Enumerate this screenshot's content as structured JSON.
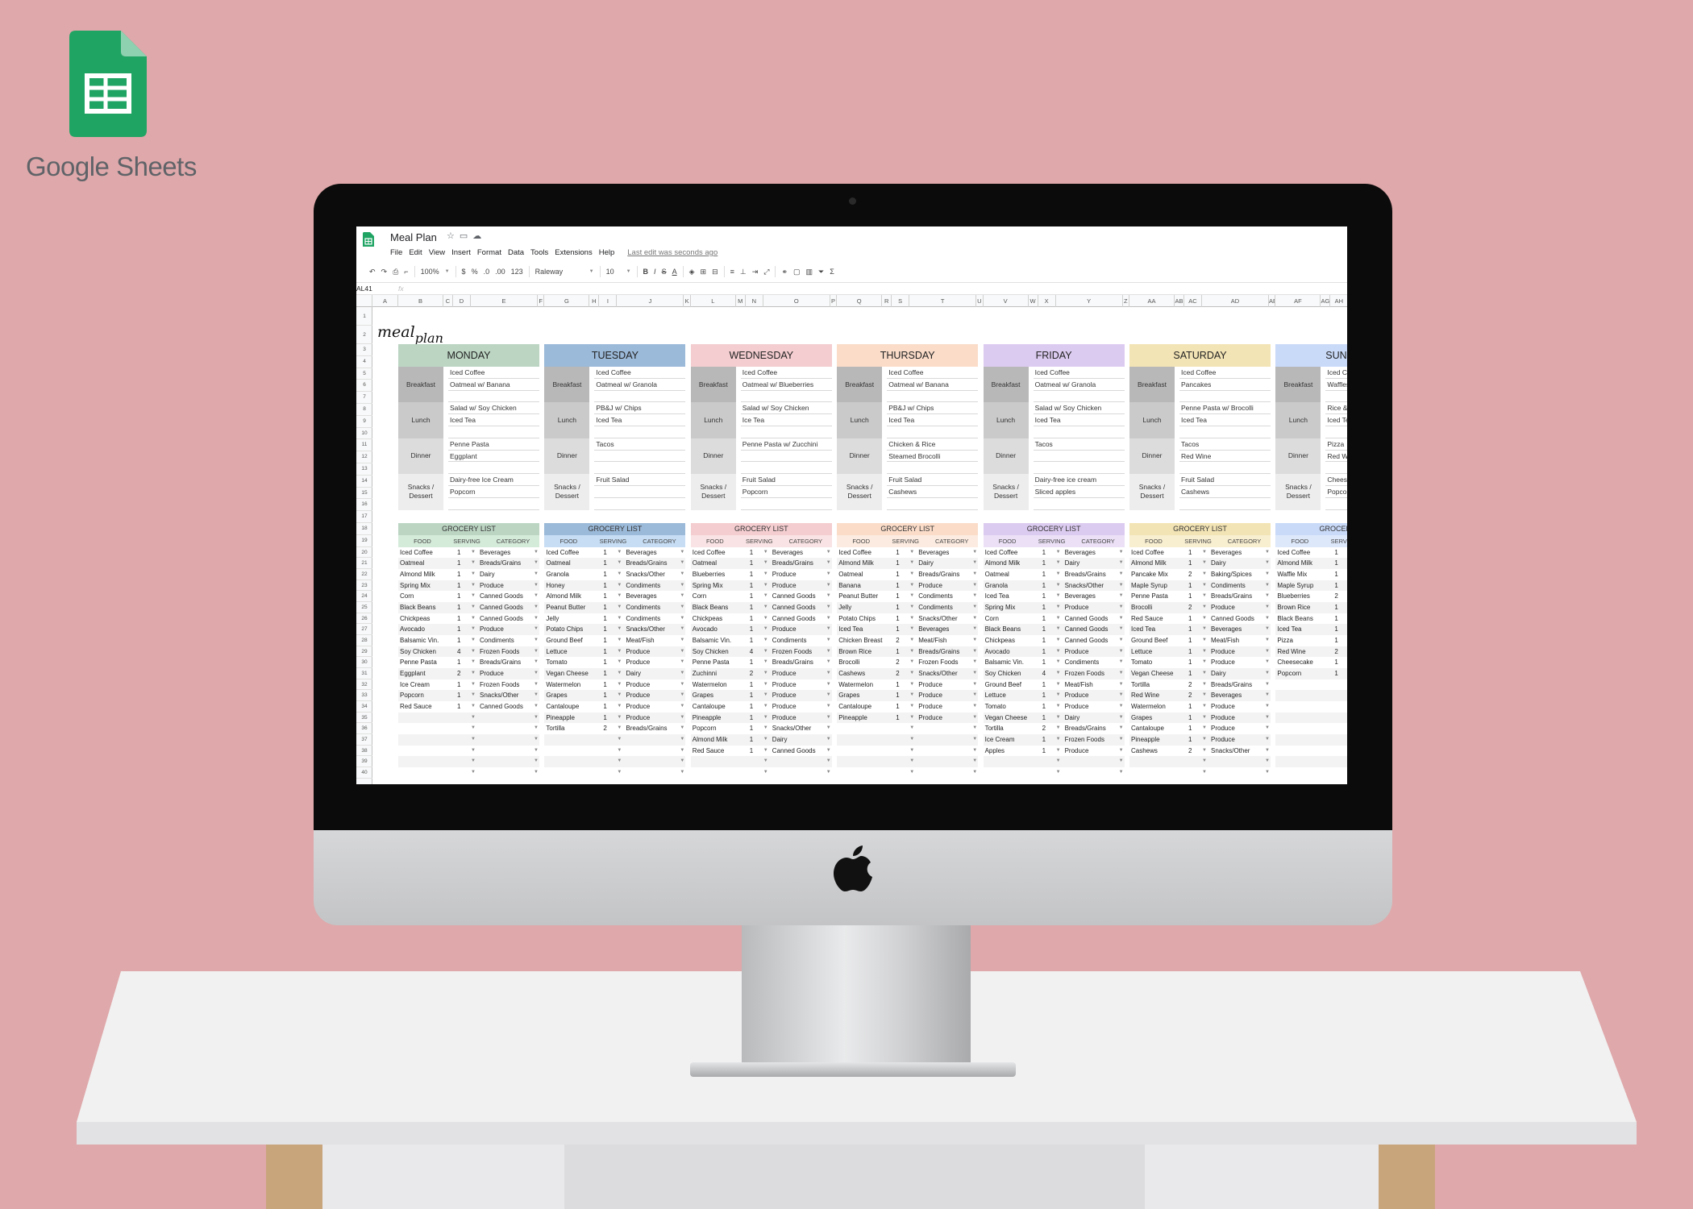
{
  "brand": {
    "name": "Google Sheets",
    "icon": "google-sheets-logo",
    "color": "#0f9d58"
  },
  "sheet": {
    "title": "Meal Plan",
    "menu": [
      "File",
      "Edit",
      "View",
      "Insert",
      "Format",
      "Data",
      "Tools",
      "Extensions",
      "Help"
    ],
    "last_edit": "Last edit was seconds ago",
    "toolbar": {
      "zoom": "100%",
      "currency": "$",
      "percent": "%",
      "dec_less": ".0",
      "dec_more": ".00",
      "format": "123",
      "font": "Raleway",
      "font_size": "10",
      "bold": "B",
      "italic": "I",
      "strike": "S",
      "text_color": "A"
    },
    "name_box": "AL41",
    "fx": "fx",
    "columns": [
      "A",
      "B",
      "C",
      "D",
      "E",
      "F",
      "G",
      "H",
      "I",
      "J",
      "K",
      "L",
      "M",
      "N",
      "O",
      "P",
      "Q",
      "R",
      "S",
      "T",
      "U",
      "V",
      "W",
      "X",
      "Y",
      "Z",
      "AA",
      "AB",
      "AC",
      "AD",
      "AE",
      "AF",
      "AG",
      "AH"
    ],
    "logo_text": {
      "word1": "meal",
      "word2": "plan"
    },
    "meal_labels": [
      "Breakfast",
      "Lunch",
      "Dinner",
      "Snacks / Dessert"
    ],
    "grocery_title": "GROCERY LIST",
    "grocery_columns": [
      "FOOD",
      "SERVING",
      "CATEGORY"
    ],
    "days": [
      {
        "name": "MONDAY",
        "color": "#bcd5c3",
        "sub_color": "#d5ebda",
        "meals": [
          [
            "Iced Coffee",
            "Oatmeal w/ Banana"
          ],
          [
            "Salad  w/ Soy Chicken",
            "Iced Tea"
          ],
          [
            "Penne Pasta",
            "Eggplant"
          ],
          [
            "Dairy-free Ice Cream",
            "Popcorn"
          ]
        ],
        "grocery": [
          [
            "Iced Coffee",
            "1",
            "Beverages"
          ],
          [
            "Oatmeal",
            "1",
            "Breads/Grains"
          ],
          [
            "Almond Milk",
            "1",
            "Dairy"
          ],
          [
            "Spring Mix",
            "1",
            "Produce"
          ],
          [
            "Corn",
            "1",
            "Canned Goods"
          ],
          [
            "Black Beans",
            "1",
            "Canned Goods"
          ],
          [
            "Chickpeas",
            "1",
            "Canned Goods"
          ],
          [
            "Avocado",
            "1",
            "Produce"
          ],
          [
            "Balsamic Vin.",
            "1",
            "Condiments"
          ],
          [
            "Soy Chicken",
            "4",
            "Frozen Foods"
          ],
          [
            "Penne Pasta",
            "1",
            "Breads/Grains"
          ],
          [
            "Eggplant",
            "2",
            "Produce"
          ],
          [
            "Ice Cream",
            "1",
            "Frozen Foods"
          ],
          [
            "Popcorn",
            "1",
            "Snacks/Other"
          ],
          [
            "Red Sauce",
            "1",
            "Canned Goods"
          ]
        ]
      },
      {
        "name": "TUESDAY",
        "color": "#9bb9d8",
        "sub_color": "#c6ddf4",
        "meals": [
          [
            "Iced Coffee",
            "Oatmeal w/ Granola"
          ],
          [
            "PB&J  w/ Chips",
            "Iced Tea"
          ],
          [
            "Tacos",
            ""
          ],
          [
            "Fruit Salad",
            ""
          ]
        ],
        "grocery": [
          [
            "Iced Coffee",
            "1",
            "Beverages"
          ],
          [
            "Oatmeal",
            "1",
            "Breads/Grains"
          ],
          [
            "Granola",
            "1",
            "Snacks/Other"
          ],
          [
            "Honey",
            "1",
            "Condiments"
          ],
          [
            "Almond Milk",
            "1",
            "Beverages"
          ],
          [
            "Peanut Butter",
            "1",
            "Condiments"
          ],
          [
            "Jelly",
            "1",
            "Condiments"
          ],
          [
            "Potato Chips",
            "1",
            "Snacks/Other"
          ],
          [
            "Ground Beef",
            "1",
            "Meat/Fish"
          ],
          [
            "Lettuce",
            "1",
            "Produce"
          ],
          [
            "Tomato",
            "1",
            "Produce"
          ],
          [
            "Vegan Cheese",
            "1",
            "Dairy"
          ],
          [
            "Watermelon",
            "1",
            "Produce"
          ],
          [
            "Grapes",
            "1",
            "Produce"
          ],
          [
            "Cantaloupe",
            "1",
            "Produce"
          ],
          [
            "Pineapple",
            "1",
            "Produce"
          ],
          [
            "Tortilla",
            "2",
            "Breads/Grains"
          ]
        ]
      },
      {
        "name": "WEDNESDAY",
        "color": "#f4cdd0",
        "sub_color": "#fae3e4",
        "meals": [
          [
            "Iced Coffee",
            "Oatmeal w/ Blueberries"
          ],
          [
            "Salad  w/ Soy Chicken",
            "Ice Tea"
          ],
          [
            "Penne Pasta w/ Zucchini",
            ""
          ],
          [
            "Fruit Salad",
            "Popcorn"
          ]
        ],
        "grocery": [
          [
            "Iced Coffee",
            "1",
            "Beverages"
          ],
          [
            "Oatmeal",
            "1",
            "Breads/Grains"
          ],
          [
            "Blueberries",
            "1",
            "Produce"
          ],
          [
            "Spring Mix",
            "1",
            "Produce"
          ],
          [
            "Corn",
            "1",
            "Canned Goods"
          ],
          [
            "Black Beans",
            "1",
            "Canned Goods"
          ],
          [
            "Chickpeas",
            "1",
            "Canned Goods"
          ],
          [
            "Avocado",
            "1",
            "Produce"
          ],
          [
            "Balsamic Vin.",
            "1",
            "Condiments"
          ],
          [
            "Soy Chicken",
            "4",
            "Frozen Foods"
          ],
          [
            "Penne Pasta",
            "1",
            "Breads/Grains"
          ],
          [
            "Zuchinni",
            "2",
            "Produce"
          ],
          [
            "Watermelon",
            "1",
            "Produce"
          ],
          [
            "Grapes",
            "1",
            "Produce"
          ],
          [
            "Cantaloupe",
            "1",
            "Produce"
          ],
          [
            "Pineapple",
            "1",
            "Produce"
          ],
          [
            "Popcorn",
            "1",
            "Snacks/Other"
          ],
          [
            "Almond Milk",
            "1",
            "Dairy"
          ],
          [
            "Red Sauce",
            "1",
            "Canned Goods"
          ]
        ]
      },
      {
        "name": "THURSDAY",
        "color": "#fadcc9",
        "sub_color": "#fcebe0",
        "meals": [
          [
            "Iced Coffee",
            "Oatmeal w/ Banana"
          ],
          [
            "PB&J  w/ Chips",
            "Iced Tea"
          ],
          [
            "Chicken & Rice",
            "Steamed Brocolli"
          ],
          [
            "Fruit Salad",
            "Cashews"
          ]
        ],
        "grocery": [
          [
            "Iced Coffee",
            "1",
            "Beverages"
          ],
          [
            "Almond Milk",
            "1",
            "Dairy"
          ],
          [
            "Oatmeal",
            "1",
            "Breads/Grains"
          ],
          [
            "Banana",
            "1",
            "Produce"
          ],
          [
            "Peanut Butter",
            "1",
            "Condiments"
          ],
          [
            "Jelly",
            "1",
            "Condiments"
          ],
          [
            "Potato Chips",
            "1",
            "Snacks/Other"
          ],
          [
            "Iced Tea",
            "1",
            "Beverages"
          ],
          [
            "Chicken Breast",
            "2",
            "Meat/Fish"
          ],
          [
            "Brown Rice",
            "1",
            "Breads/Grains"
          ],
          [
            "Brocolli",
            "2",
            "Frozen Foods"
          ],
          [
            "Cashews",
            "2",
            "Snacks/Other"
          ],
          [
            "Watermelon",
            "1",
            "Produce"
          ],
          [
            "Grapes",
            "1",
            "Produce"
          ],
          [
            "Cantaloupe",
            "1",
            "Produce"
          ],
          [
            "Pineapple",
            "1",
            "Produce"
          ]
        ]
      },
      {
        "name": "FRIDAY",
        "color": "#dccbf0",
        "sub_color": "#ebe0f6",
        "meals": [
          [
            "Iced Coffee",
            "Oatmeal w/ Granola"
          ],
          [
            "Salad  w/ Soy Chicken",
            "Iced Tea"
          ],
          [
            "Tacos",
            ""
          ],
          [
            "Dairy-free ice cream",
            "Sliced apples"
          ]
        ],
        "grocery": [
          [
            "Iced Coffee",
            "1",
            "Beverages"
          ],
          [
            "Almond Milk",
            "1",
            "Dairy"
          ],
          [
            "Oatmeal",
            "1",
            "Breads/Grains"
          ],
          [
            "Granola",
            "1",
            "Snacks/Other"
          ],
          [
            "Iced Tea",
            "1",
            "Beverages"
          ],
          [
            "Spring Mix",
            "1",
            "Produce"
          ],
          [
            "Corn",
            "1",
            "Canned Goods"
          ],
          [
            "Black Beans",
            "1",
            "Canned Goods"
          ],
          [
            "Chickpeas",
            "1",
            "Canned Goods"
          ],
          [
            "Avocado",
            "1",
            "Produce"
          ],
          [
            "Balsamic Vin.",
            "1",
            "Condiments"
          ],
          [
            "Soy Chicken",
            "4",
            "Frozen Foods"
          ],
          [
            "Ground Beef",
            "1",
            "Meat/Fish"
          ],
          [
            "Lettuce",
            "1",
            "Produce"
          ],
          [
            "Tomato",
            "1",
            "Produce"
          ],
          [
            "Vegan Cheese",
            "1",
            "Dairy"
          ],
          [
            "Tortilla",
            "2",
            "Breads/Grains"
          ],
          [
            "Ice Cream",
            "1",
            "Frozen Foods"
          ],
          [
            "Apples",
            "1",
            "Produce"
          ]
        ]
      },
      {
        "name": "SATURDAY",
        "color": "#f3e4b5",
        "sub_color": "#f8eed0",
        "meals": [
          [
            "Iced Coffee",
            "Pancakes"
          ],
          [
            "Penne Pasta w/ Brocolli",
            "Iced Tea"
          ],
          [
            "Tacos",
            "Red Wine"
          ],
          [
            "Fruit Salad",
            "Cashews"
          ]
        ],
        "grocery": [
          [
            "Iced Coffee",
            "1",
            "Beverages"
          ],
          [
            "Almond Milk",
            "1",
            "Dairy"
          ],
          [
            "Pancake Mix",
            "2",
            "Baking/Spices"
          ],
          [
            "Maple Syrup",
            "1",
            "Condiments"
          ],
          [
            "Penne Pasta",
            "1",
            "Breads/Grains"
          ],
          [
            "Brocolli",
            "2",
            "Produce"
          ],
          [
            "Red Sauce",
            "1",
            "Canned Goods"
          ],
          [
            "Iced Tea",
            "1",
            "Beverages"
          ],
          [
            "Ground Beef",
            "1",
            "Meat/Fish"
          ],
          [
            "Lettuce",
            "1",
            "Produce"
          ],
          [
            "Tomato",
            "1",
            "Produce"
          ],
          [
            "Vegan Cheese",
            "1",
            "Dairy"
          ],
          [
            "Tortilla",
            "2",
            "Breads/Grains"
          ],
          [
            "Red Wine",
            "2",
            "Beverages"
          ],
          [
            "Watermelon",
            "1",
            "Produce"
          ],
          [
            "Grapes",
            "1",
            "Produce"
          ],
          [
            "Cantaloupe",
            "1",
            "Produce"
          ],
          [
            "Pineapple",
            "1",
            "Produce"
          ],
          [
            "Cashews",
            "2",
            "Snacks/Other"
          ]
        ]
      },
      {
        "name": "SUNDAY",
        "color": "#c9daf8",
        "sub_color": "#dde8fa",
        "meals": [
          [
            "Iced Coffee",
            "Waffles"
          ],
          [
            "Rice &",
            "Iced Tea"
          ],
          [
            "Pizza",
            "Red Wine"
          ],
          [
            "Cheesecake",
            "Popcorn"
          ]
        ],
        "grocery": [
          [
            "Iced Coffee",
            "1",
            ""
          ],
          [
            "Almond Milk",
            "1",
            ""
          ],
          [
            "Waffle Mix",
            "1",
            ""
          ],
          [
            "Maple Syrup",
            "1",
            ""
          ],
          [
            "Blueberries",
            "2",
            ""
          ],
          [
            "Brown Rice",
            "1",
            ""
          ],
          [
            "Black Beans",
            "1",
            ""
          ],
          [
            "Iced Tea",
            "1",
            ""
          ],
          [
            "Pizza",
            "1",
            ""
          ],
          [
            "Red Wine",
            "2",
            ""
          ],
          [
            "Cheesecake",
            "1",
            ""
          ],
          [
            "Popcorn",
            "1",
            ""
          ]
        ]
      }
    ]
  }
}
